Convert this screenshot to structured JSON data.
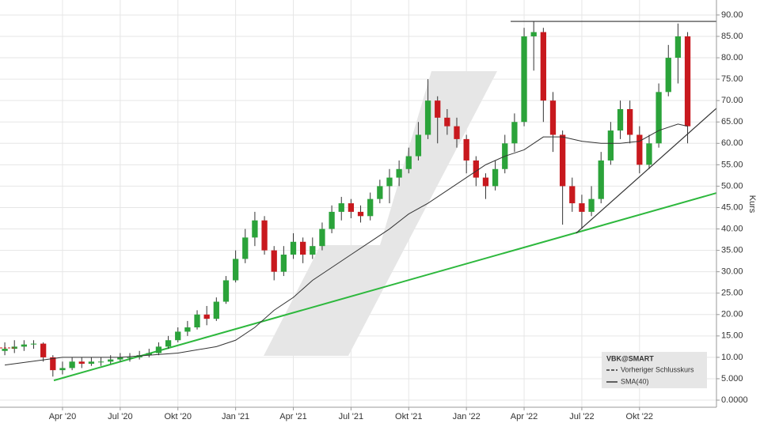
{
  "chart_data": {
    "type": "candlestick",
    "x": [
      0,
      0.5,
      1,
      1.5,
      2,
      2.5,
      3,
      3.5,
      4,
      4.5,
      5,
      5.5,
      6,
      6.5,
      7,
      7.5,
      8,
      8.5,
      9,
      9.5,
      10,
      10.5,
      11,
      11.5,
      12,
      12.5,
      13,
      13.5,
      14,
      14.5,
      15,
      15.5,
      16,
      16.5,
      17,
      17.5,
      18,
      18.5,
      19,
      19.5,
      20,
      20.5,
      21,
      21.5,
      22,
      22.5,
      23,
      23.5,
      24,
      24.5,
      25,
      25.5,
      26,
      26.5,
      27,
      27.5,
      28,
      28.5,
      29,
      29.5,
      30,
      30.5,
      31,
      31.5,
      32,
      32.5,
      33,
      33.5,
      34,
      34.5,
      35,
      35.5
    ],
    "open": [
      11.5,
      12,
      12.5,
      13,
      13.2,
      10,
      7,
      7.5,
      9,
      8.5,
      9,
      9,
      9.5,
      10,
      10,
      10.5,
      11,
      12.5,
      14,
      16,
      17,
      20,
      19,
      23,
      28,
      33,
      38,
      42,
      35,
      30,
      34,
      37,
      34,
      36,
      40,
      44,
      46,
      44,
      43,
      47,
      50,
      52,
      54,
      57,
      62,
      70,
      66,
      64,
      61,
      56,
      52,
      50,
      54,
      60,
      65,
      85,
      86,
      70,
      62,
      50,
      46,
      44,
      47,
      56,
      63,
      68,
      62,
      55,
      60,
      72,
      80,
      85
    ],
    "high": [
      13.5,
      14,
      14,
      14,
      13.5,
      10.5,
      9,
      10,
      10,
      10,
      10,
      10.5,
      11,
      11,
      11.5,
      12,
      13.5,
      15,
      17,
      18.5,
      21,
      22,
      24,
      29,
      35,
      40,
      44,
      43,
      36,
      36,
      39,
      38,
      38,
      41.5,
      45.5,
      47.5,
      47,
      45.5,
      48.5,
      51.5,
      54,
      56,
      59,
      65,
      75,
      71,
      68,
      66,
      62,
      57,
      53,
      56,
      62,
      67,
      87,
      88.5,
      87,
      72,
      63,
      52,
      48,
      50,
      58,
      65,
      70,
      70,
      64,
      62,
      74,
      83,
      88,
      86
    ],
    "low": [
      10.5,
      11,
      11.5,
      12,
      9,
      5.5,
      6,
      7,
      7.5,
      8,
      8,
      8.5,
      9,
      9,
      9.5,
      10,
      10.5,
      12,
      13.5,
      15,
      16.5,
      17.5,
      18.5,
      22.5,
      27.5,
      32,
      36,
      34,
      28,
      29,
      33,
      32,
      33,
      35,
      39,
      42,
      42.5,
      41.5,
      42,
      46,
      46,
      50,
      53,
      56,
      61,
      60,
      62,
      59,
      53,
      50,
      47,
      49,
      53,
      58,
      64,
      77,
      65,
      58,
      41,
      44,
      40,
      43,
      46,
      55,
      61,
      60,
      53,
      54,
      59,
      71,
      74,
      60
    ],
    "close": [
      12,
      12.5,
      13,
      13.2,
      10,
      7,
      7.5,
      9,
      8.5,
      9,
      9,
      9.5,
      10,
      10,
      10.5,
      11,
      12.5,
      14,
      16,
      17,
      20,
      19,
      23,
      28,
      33,
      38,
      42,
      35,
      30,
      34,
      37,
      34,
      36,
      40,
      44,
      46,
      44,
      43,
      47,
      50,
      52,
      54,
      57,
      62,
      70,
      66,
      64,
      61,
      56,
      52,
      50,
      54,
      60,
      65,
      85,
      86,
      70,
      62,
      50,
      46,
      44,
      47,
      56,
      63,
      68,
      62,
      55,
      60,
      72,
      80,
      85,
      64
    ],
    "up_color": "#2ba33a",
    "down_color": "#c8191e",
    "legend_title": "VBK@SMART",
    "legend": "bottom-right",
    "series": [
      {
        "name": "Vorheriger Schlusskurs",
        "color": "#c8191e",
        "dashed": true,
        "x": [
          -0.25,
          0.6
        ],
        "values": [
          12.2,
          12.2
        ]
      },
      {
        "name": "SMA(40)",
        "color": "#333333",
        "dashed": false,
        "x": [
          0,
          3,
          6,
          9,
          11,
          12,
          13,
          14,
          15,
          16,
          17,
          18,
          19,
          20,
          21,
          22,
          23,
          24,
          25,
          26,
          27,
          28,
          29,
          30,
          31,
          32,
          33,
          34,
          35,
          35.5
        ],
        "values": [
          8.2,
          10,
          10,
          11,
          12.5,
          14,
          17,
          21,
          24,
          28,
          31,
          34,
          37,
          40,
          43.5,
          46,
          49,
          52,
          55,
          57,
          58.5,
          61.5,
          61.5,
          60.5,
          60,
          60,
          60.5,
          63,
          64.5,
          64
        ]
      }
    ],
    "trendlines": [
      {
        "color": "#2db83d",
        "x": [
          2.55,
          37
        ],
        "values": [
          4.6,
          48.4
        ]
      },
      {
        "color": "#333333",
        "x": [
          29.7,
          37
        ],
        "values": [
          39,
          68.2
        ]
      },
      {
        "color": "#333333",
        "x": [
          26.3,
          37
        ],
        "values": [
          88.5,
          88.5
        ]
      }
    ],
    "ylabel": "Kurs",
    "grid": true,
    "xlim": [
      -0.25,
      37
    ],
    "xticks": [
      {
        "value": 3,
        "label": "Apr '20"
      },
      {
        "value": 6,
        "label": "Jul '20"
      },
      {
        "value": 9,
        "label": "Okt '20"
      },
      {
        "value": 12,
        "label": "Jan '21"
      },
      {
        "value": 15,
        "label": "Apr '21"
      },
      {
        "value": 18,
        "label": "Jul '21"
      },
      {
        "value": 21,
        "label": "Okt '21"
      },
      {
        "value": 24,
        "label": "Jan '22"
      },
      {
        "value": 27,
        "label": "Apr '22"
      },
      {
        "value": 30,
        "label": "Jul '22"
      },
      {
        "value": 33,
        "label": "Okt '22"
      }
    ],
    "ylim": [
      -1.66,
      93.5
    ],
    "yticks": [
      {
        "value": 0,
        "label": "0.0000"
      },
      {
        "value": 5,
        "label": "5.000"
      },
      {
        "value": 10,
        "label": "10.00"
      },
      {
        "value": 15,
        "label": "15.00"
      },
      {
        "value": 20,
        "label": "20.00"
      },
      {
        "value": 25,
        "label": "25.00"
      },
      {
        "value": 30,
        "label": "30.00"
      },
      {
        "value": 35,
        "label": "35.00"
      },
      {
        "value": 40,
        "label": "40.00"
      },
      {
        "value": 45,
        "label": "45.00"
      },
      {
        "value": 50,
        "label": "50.00"
      },
      {
        "value": 55,
        "label": "55.00"
      },
      {
        "value": 60,
        "label": "60.00"
      },
      {
        "value": 65,
        "label": "65.00"
      },
      {
        "value": 70,
        "label": "70.00"
      },
      {
        "value": 75,
        "label": "75.00"
      },
      {
        "value": 80,
        "label": "80.00"
      },
      {
        "value": 85,
        "label": "85.00"
      },
      {
        "value": 90,
        "label": "90.00"
      }
    ]
  }
}
